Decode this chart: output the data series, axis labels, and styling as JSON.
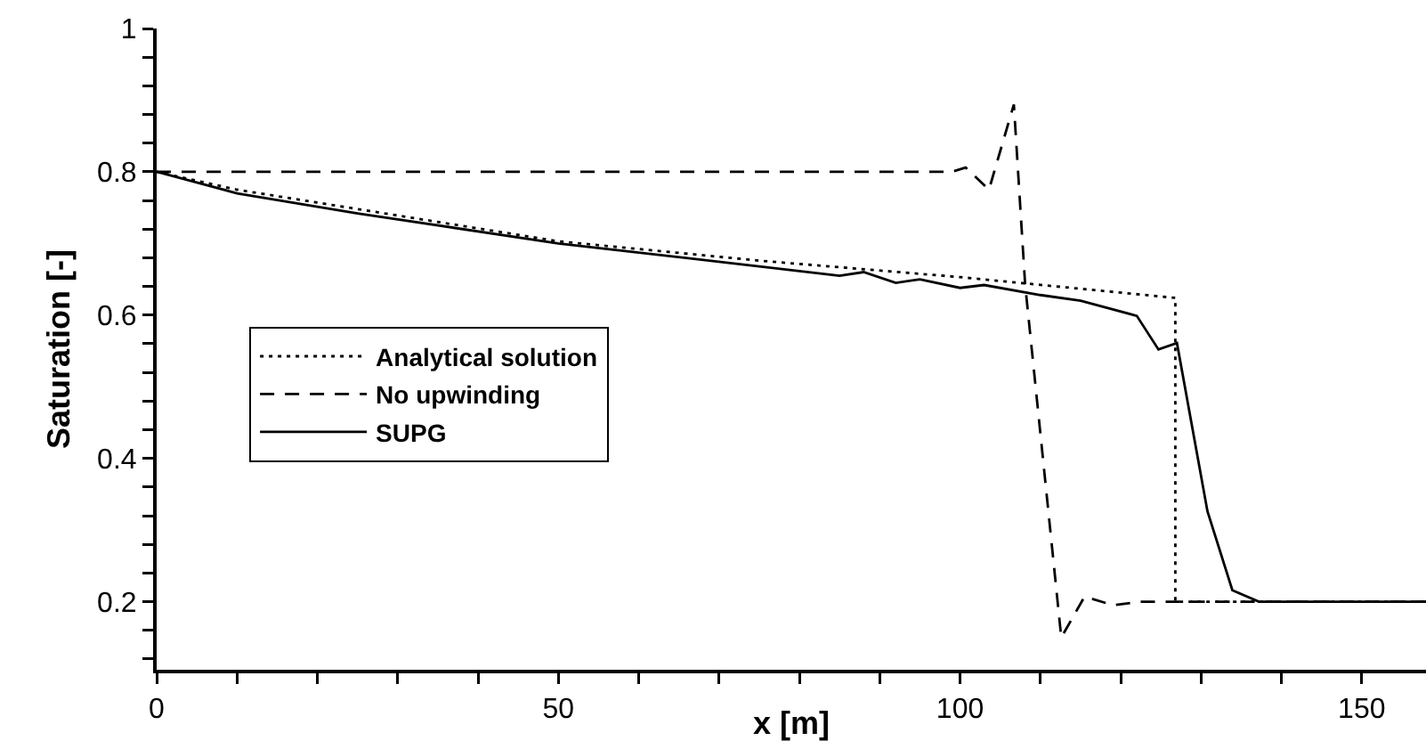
{
  "chart_data": {
    "type": "line",
    "xlabel": "x [m]",
    "ylabel": "Saturation [-]",
    "xlim": [
      0,
      158
    ],
    "ylim": [
      0.105,
      1
    ],
    "xticks": [
      0,
      {
        "value": 10,
        "label": null
      },
      {
        "value": 20,
        "label": null
      },
      {
        "value": 30,
        "label": null
      },
      {
        "value": 40,
        "label": null
      },
      50,
      {
        "value": 60,
        "label": null
      },
      {
        "value": 70,
        "label": null
      },
      {
        "value": 80,
        "label": null
      },
      {
        "value": 90,
        "label": null
      },
      100,
      {
        "value": 110,
        "label": null
      },
      {
        "value": 120,
        "label": null
      },
      {
        "value": 130,
        "label": null
      },
      {
        "value": 140,
        "label": null
      },
      150
    ],
    "yticks": [
      {
        "value": 0.12,
        "label": null
      },
      {
        "value": 0.16,
        "label": null
      },
      0.2,
      {
        "value": 0.24,
        "label": null
      },
      {
        "value": 0.28,
        "label": null
      },
      {
        "value": 0.32,
        "label": null
      },
      {
        "value": 0.36,
        "label": null
      },
      0.4,
      {
        "value": 0.44,
        "label": null
      },
      {
        "value": 0.48,
        "label": null
      },
      {
        "value": 0.52,
        "label": null
      },
      {
        "value": 0.56,
        "label": null
      },
      0.6,
      {
        "value": 0.64,
        "label": null
      },
      {
        "value": 0.68,
        "label": null
      },
      {
        "value": 0.72,
        "label": null
      },
      {
        "value": 0.76,
        "label": null
      },
      0.8,
      {
        "value": 0.84,
        "label": null
      },
      {
        "value": 0.88,
        "label": null
      },
      {
        "value": 0.92,
        "label": null
      },
      {
        "value": 0.96,
        "label": null
      },
      1
    ],
    "grid": false,
    "legend": "left",
    "marker": "none",
    "series": [
      {
        "name": "Analytical solution",
        "color": "#000000",
        "line_style": "dotted",
        "x": [
          0,
          10,
          25,
          50,
          75,
          100,
          126.8,
          126.8,
          158
        ],
        "values": [
          0.8,
          0.775,
          0.748,
          0.703,
          0.676,
          0.653,
          0.624,
          0.2,
          0.2
        ]
      },
      {
        "name": "No upwinding",
        "color": "#000000",
        "line_style": "dashed",
        "x": [
          0,
          99,
          100.7,
          103.6,
          106.7,
          108.1,
          112.6,
          115.5,
          119.1,
          122.4,
          158
        ],
        "values": [
          0.8,
          0.8,
          0.806,
          0.775,
          0.894,
          0.643,
          0.15,
          0.207,
          0.195,
          0.2,
          0.2
        ]
      },
      {
        "name": "SUPG",
        "color": "#000000",
        "line_style": "solid",
        "x": [
          0,
          10,
          25,
          50,
          75,
          85,
          88,
          92,
          95,
          100,
          103,
          110,
          115,
          122,
          124.7,
          127,
          130.8,
          133.9,
          137.2,
          158
        ],
        "values": [
          0.8,
          0.77,
          0.742,
          0.7,
          0.668,
          0.655,
          0.66,
          0.645,
          0.65,
          0.638,
          0.642,
          0.628,
          0.62,
          0.599,
          0.552,
          0.561,
          0.326,
          0.216,
          0.2,
          0.2
        ]
      }
    ]
  }
}
